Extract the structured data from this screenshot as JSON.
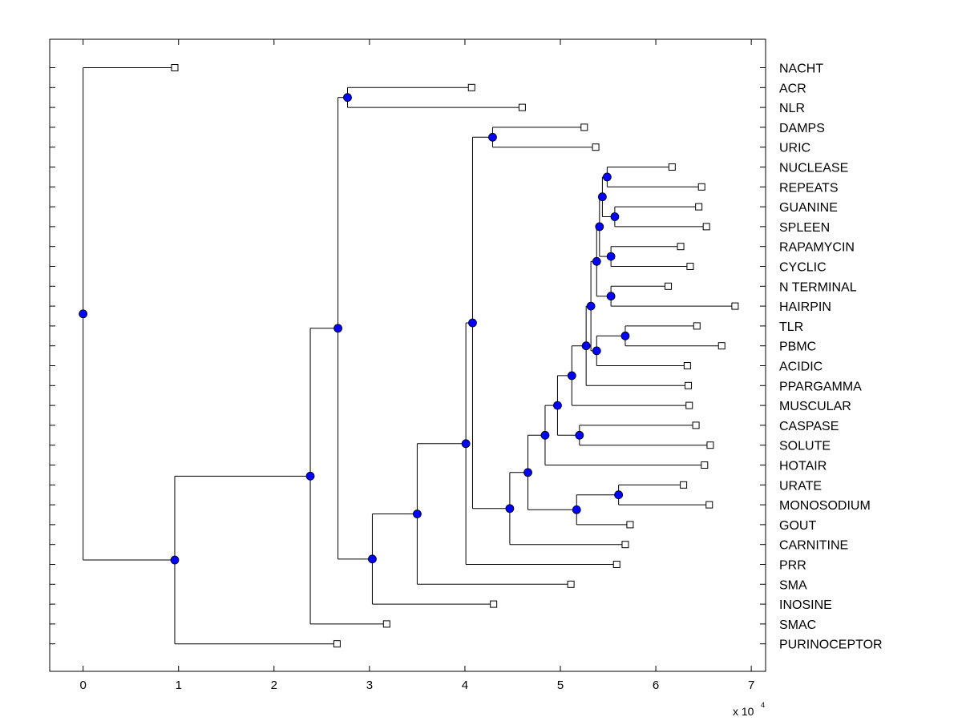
{
  "chart_data": {
    "type": "dendrogram",
    "title": "",
    "xlabel": "",
    "ylabel": "",
    "x_multiplier_label": "x 10",
    "x_multiplier_exponent": "4",
    "xlim": [
      -0.35,
      7.15
    ],
    "xticks": [
      0,
      1,
      2,
      3,
      4,
      5,
      6,
      7
    ],
    "grid": false,
    "leaf_marker_color": "#ffffff",
    "node_marker_color": "#0000ff",
    "line_color": "#000000",
    "leaves": [
      {
        "name": "NACHT",
        "x": 0.96
      },
      {
        "name": "ACR",
        "x": 4.07
      },
      {
        "name": "NLR",
        "x": 4.6
      },
      {
        "name": "DAMPS",
        "x": 5.25
      },
      {
        "name": "URIC",
        "x": 5.37
      },
      {
        "name": "NUCLEASE",
        "x": 6.17
      },
      {
        "name": "REPEATS",
        "x": 6.48
      },
      {
        "name": "GUANINE",
        "x": 6.45
      },
      {
        "name": "SPLEEN",
        "x": 6.53
      },
      {
        "name": "RAPAMYCIN",
        "x": 6.26
      },
      {
        "name": "CYCLIC",
        "x": 6.36
      },
      {
        "name": "N TERMINAL",
        "x": 6.13
      },
      {
        "name": "HAIRPIN",
        "x": 6.83
      },
      {
        "name": "TLR",
        "x": 6.43
      },
      {
        "name": "PBMC",
        "x": 6.69
      },
      {
        "name": "ACIDIC",
        "x": 6.33
      },
      {
        "name": "PPARGAMMA",
        "x": 6.34
      },
      {
        "name": "MUSCULAR",
        "x": 6.35
      },
      {
        "name": "CASPASE",
        "x": 6.42
      },
      {
        "name": "SOLUTE",
        "x": 6.57
      },
      {
        "name": "HOTAIR",
        "x": 6.51
      },
      {
        "name": "URATE",
        "x": 6.29
      },
      {
        "name": "MONOSODIUM",
        "x": 6.56
      },
      {
        "name": "GOUT",
        "x": 5.73
      },
      {
        "name": "CARNITINE",
        "x": 5.68
      },
      {
        "name": "PRR",
        "x": 5.59
      },
      {
        "name": "SMA",
        "x": 5.11
      },
      {
        "name": "INOSINE",
        "x": 4.3
      },
      {
        "name": "SMAC",
        "x": 3.18
      },
      {
        "name": "PURINOCEPTOR",
        "x": 2.66
      }
    ],
    "nodes": [
      {
        "id": "n1",
        "x": 5.49,
        "children": [
          "NUCLEASE",
          "REPEATS"
        ]
      },
      {
        "id": "n2",
        "x": 5.57,
        "children": [
          "GUANINE",
          "SPLEEN"
        ]
      },
      {
        "id": "n3",
        "x": 5.44,
        "children": [
          "n1",
          "n2"
        ]
      },
      {
        "id": "n4",
        "x": 5.53,
        "children": [
          "RAPAMYCIN",
          "CYCLIC"
        ]
      },
      {
        "id": "n5",
        "x": 5.41,
        "children": [
          "n3",
          "n4"
        ]
      },
      {
        "id": "n6",
        "x": 5.53,
        "children": [
          "N TERMINAL",
          "HAIRPIN"
        ]
      },
      {
        "id": "n7",
        "x": 5.38,
        "children": [
          "n5",
          "n6"
        ]
      },
      {
        "id": "n8",
        "x": 5.68,
        "children": [
          "TLR",
          "PBMC"
        ]
      },
      {
        "id": "n9",
        "x": 5.38,
        "children": [
          "n8",
          "ACIDIC"
        ]
      },
      {
        "id": "n10",
        "x": 5.32,
        "children": [
          "n7",
          "n9"
        ]
      },
      {
        "id": "n11",
        "x": 5.27,
        "children": [
          "n10",
          "PPARGAMMA"
        ]
      },
      {
        "id": "n12",
        "x": 5.12,
        "children": [
          "n11",
          "MUSCULAR"
        ]
      },
      {
        "id": "n13",
        "x": 5.2,
        "children": [
          "CASPASE",
          "SOLUTE"
        ]
      },
      {
        "id": "n14",
        "x": 4.97,
        "children": [
          "n12",
          "n13"
        ]
      },
      {
        "id": "n15",
        "x": 4.84,
        "children": [
          "n14",
          "HOTAIR"
        ]
      },
      {
        "id": "n16",
        "x": 5.61,
        "children": [
          "URATE",
          "MONOSODIUM"
        ]
      },
      {
        "id": "n17",
        "x": 5.17,
        "children": [
          "n16",
          "GOUT"
        ]
      },
      {
        "id": "n18",
        "x": 4.66,
        "children": [
          "n15",
          "n17"
        ]
      },
      {
        "id": "n19",
        "x": 4.47,
        "children": [
          "n18",
          "CARNITINE"
        ]
      },
      {
        "id": "n20",
        "x": 4.29,
        "children": [
          "DAMPS",
          "URIC"
        ]
      },
      {
        "id": "n21",
        "x": 4.08,
        "children": [
          "n20",
          "n19"
        ]
      },
      {
        "id": "n22",
        "x": 4.01,
        "children": [
          "n21",
          "PRR"
        ]
      },
      {
        "id": "n23",
        "x": 3.5,
        "children": [
          "n22",
          "SMA"
        ]
      },
      {
        "id": "n24",
        "x": 3.03,
        "children": [
          "n23",
          "INOSINE"
        ]
      },
      {
        "id": "n25",
        "x": 2.77,
        "children": [
          "ACR",
          "NLR"
        ]
      },
      {
        "id": "n26",
        "x": 2.67,
        "children": [
          "n25",
          "n24"
        ]
      },
      {
        "id": "n27",
        "x": 2.38,
        "children": [
          "n26",
          "SMAC"
        ]
      },
      {
        "id": "n28",
        "x": 0.96,
        "children": [
          "n27",
          "PURINOCEPTOR"
        ]
      },
      {
        "id": "n29",
        "x": 0.0,
        "children": [
          "NACHT",
          "n28"
        ]
      }
    ]
  }
}
